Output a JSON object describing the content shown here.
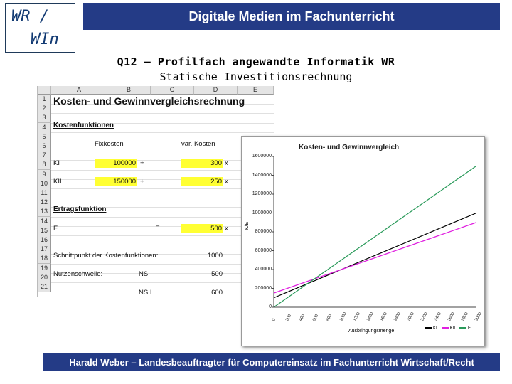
{
  "logo": {
    "line1": "WR /",
    "line2": "WIn"
  },
  "header": {
    "title": "Digitale Medien im Fachunterricht"
  },
  "slide": {
    "title": "Q12 – Profilfach angewandte Informatik WR",
    "subtitle": "Statische Investitionsrechnung"
  },
  "spreadsheet": {
    "columns": [
      "A",
      "B",
      "C",
      "D",
      "E"
    ],
    "rows": [
      "1",
      "2",
      "3",
      "4",
      "5",
      "6",
      "7",
      "8",
      "9",
      "10",
      "11",
      "12",
      "13",
      "14",
      "15",
      "16",
      "17",
      "18",
      "19",
      "20",
      "21"
    ],
    "title": "Kosten- und Gewinnvergleichsrechnung",
    "section_costs": "Kostenfunktionen",
    "col_fixed": "Fixkosten",
    "col_var": "var. Kosten",
    "k1_label": "KI",
    "k1_fixed": "100000",
    "k1_plus": "+",
    "k1_var": "300",
    "k1_x": "x",
    "k2_label": "KII",
    "k2_fixed": "150000",
    "k2_plus": "+",
    "k2_var": "250",
    "k2_x": "x",
    "section_revenue": "Ertragsfunktion",
    "e_label": "E",
    "e_eq": "=",
    "e_value": "500",
    "e_x": "x",
    "intersection_label": "Schnittpunkt der Kostenfunktionen:",
    "intersection_value": "1000",
    "break_even_label": "Nutzenschwelle:",
    "nsi_label": "NSI",
    "nsi_value": "500",
    "nsii_label": "NSII",
    "nsii_value": "600"
  },
  "chart_data": {
    "type": "line",
    "title": "Kosten- und Gewinnvergleich",
    "xlabel": "Ausbringungsmenge",
    "ylabel": "K/E",
    "x": [
      0,
      200,
      400,
      600,
      800,
      1000,
      1200,
      1400,
      1600,
      1800,
      2000,
      2200,
      2400,
      2600,
      2800,
      3000
    ],
    "x_tick_labels": [
      "0",
      "200",
      "400",
      "600",
      "800",
      "1000",
      "1200",
      "1400",
      "1600",
      "1800",
      "2000",
      "2200",
      "2400",
      "2600",
      "2800",
      "3000"
    ],
    "ylim": [
      0,
      1600000
    ],
    "y_ticks": [
      0,
      200000,
      400000,
      600000,
      800000,
      1000000,
      1200000,
      1400000,
      1600000
    ],
    "y_tick_labels": [
      "0",
      "200000",
      "400000",
      "600000",
      "800000",
      "1000000",
      "1200000",
      "1400000",
      "1600000"
    ],
    "series": [
      {
        "name": "KI",
        "color": "#000000",
        "values": [
          100000,
          160000,
          220000,
          280000,
          340000,
          400000,
          460000,
          520000,
          580000,
          640000,
          700000,
          760000,
          820000,
          880000,
          940000,
          1000000
        ]
      },
      {
        "name": "KII",
        "color": "#e020e0",
        "values": [
          150000,
          200000,
          250000,
          300000,
          350000,
          400000,
          450000,
          500000,
          550000,
          600000,
          650000,
          700000,
          750000,
          800000,
          850000,
          900000
        ]
      },
      {
        "name": "E",
        "color": "#2a9a5a",
        "values": [
          0,
          100000,
          200000,
          300000,
          400000,
          500000,
          600000,
          700000,
          800000,
          900000,
          1000000,
          1100000,
          1200000,
          1300000,
          1400000,
          1500000
        ]
      }
    ],
    "legend_position": "bottom-right",
    "grid": false
  },
  "footer": {
    "text": "Harald Weber – Landesbeauftragter für Computereinsatz im Fachunterricht Wirtschaft/Recht"
  }
}
